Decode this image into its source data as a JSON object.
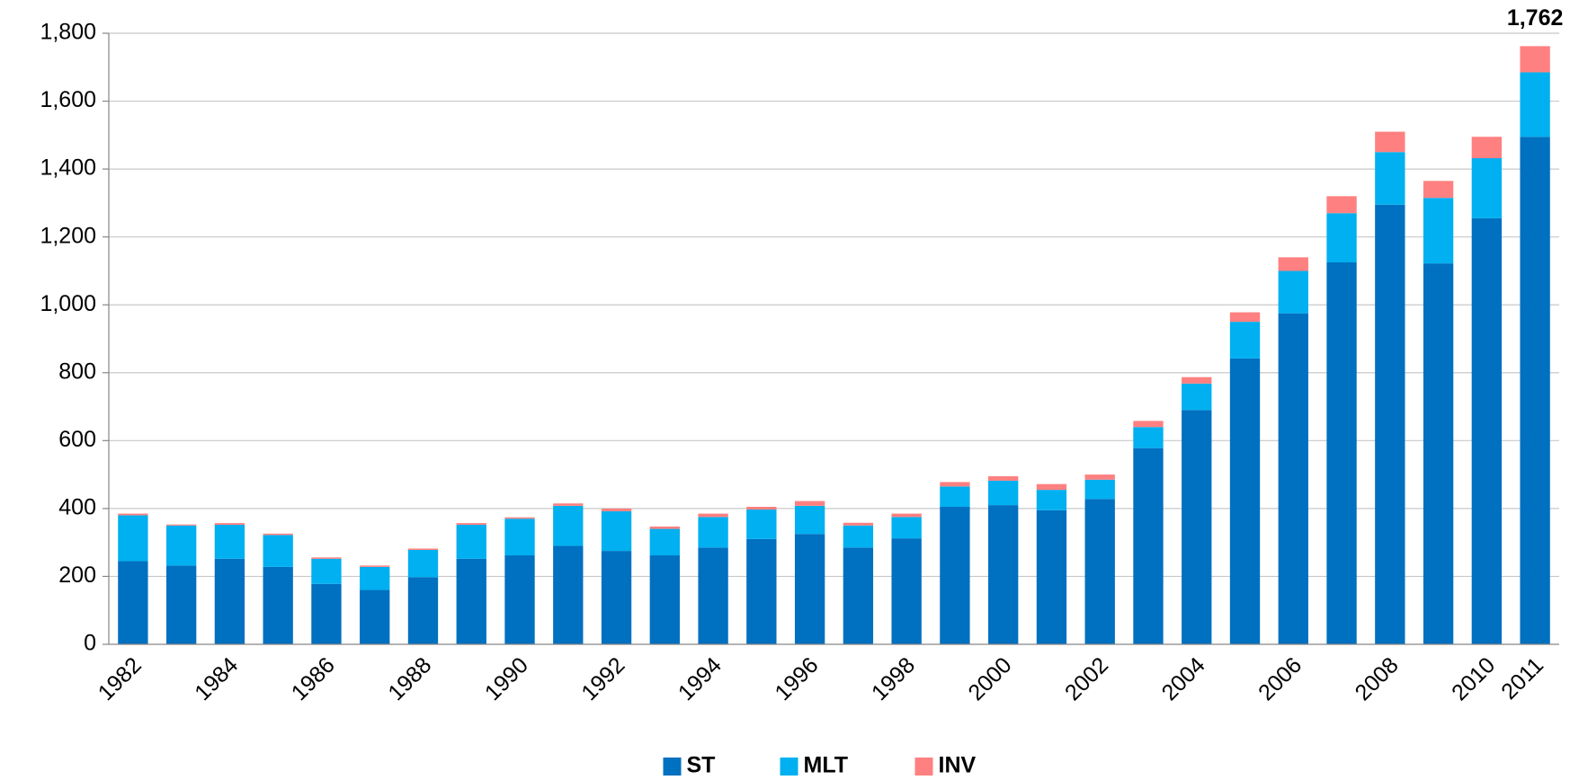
{
  "chart_data": {
    "type": "stacked_bar",
    "categories": [
      "1982",
      null,
      "1984",
      null,
      "1986",
      null,
      "1988",
      null,
      "1990",
      null,
      "1992",
      null,
      "1994",
      null,
      "1996",
      null,
      "1998",
      null,
      "2000",
      null,
      "2002",
      null,
      "2004",
      null,
      "2006",
      null,
      "2008",
      null,
      "2010",
      "2011"
    ],
    "series": [
      {
        "name": "ST",
        "color": "#0070c0",
        "values": [
          245,
          232,
          252,
          228,
          178,
          160,
          198,
          252,
          262,
          290,
          275,
          262,
          285,
          310,
          325,
          285,
          312,
          405,
          410,
          395,
          428,
          578,
          690,
          842,
          975,
          1125,
          1295,
          1122,
          1255,
          1495
        ]
      },
      {
        "name": "MLT",
        "color": "#00b0f0",
        "values": [
          135,
          118,
          100,
          94,
          74,
          68,
          80,
          100,
          108,
          118,
          117,
          78,
          90,
          87,
          83,
          65,
          63,
          60,
          72,
          60,
          57,
          62,
          78,
          108,
          125,
          145,
          155,
          193,
          177,
          190
        ]
      },
      {
        "name": "INV",
        "color": "#ff8080",
        "values": [
          5,
          3,
          5,
          4,
          4,
          4,
          4,
          5,
          4,
          7,
          8,
          7,
          10,
          8,
          14,
          8,
          10,
          13,
          13,
          17,
          15,
          18,
          19,
          28,
          40,
          50,
          60,
          50,
          63,
          77
        ]
      }
    ],
    "annotation": {
      "value": 1762,
      "label": "1,762"
    },
    "ylim": [
      0,
      1800
    ],
    "yticks": [
      0,
      200,
      400,
      600,
      800,
      {
        "value": 1000,
        "label": "1,000"
      },
      {
        "value": 1200,
        "label": "1,200"
      },
      {
        "value": 1400,
        "label": "1,400"
      },
      {
        "value": 1600,
        "label": "1,600"
      },
      {
        "value": 1800,
        "label": "1,800"
      }
    ],
    "grid": true,
    "legend": "bottom"
  }
}
